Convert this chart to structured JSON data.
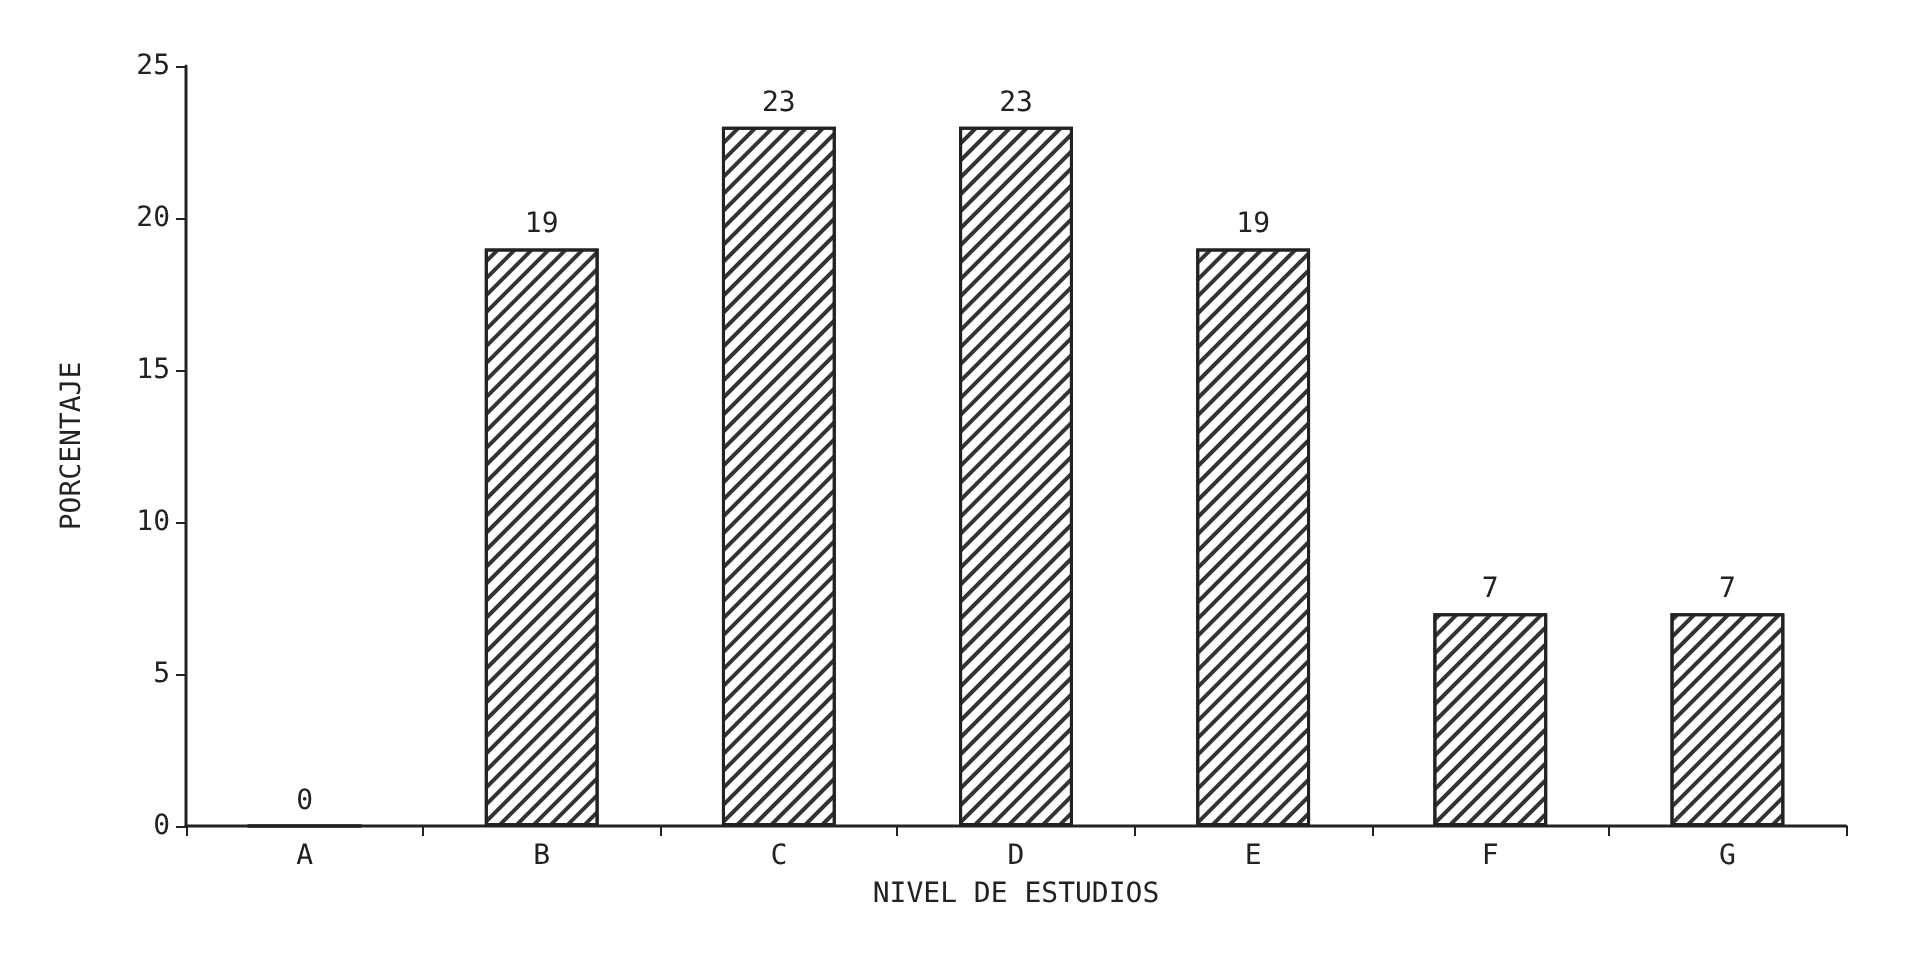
{
  "chart_data": {
    "type": "bar",
    "xlabel": "NIVEL DE ESTUDIOS",
    "ylabel": "PORCENTAJE",
    "categories": [
      "A",
      "B",
      "C",
      "D",
      "E",
      "F",
      "G"
    ],
    "values": [
      0,
      19,
      23,
      23,
      19,
      7,
      7
    ],
    "color": "#ffffff",
    "ylim": [
      0,
      25
    ],
    "yticks": [
      0,
      5,
      10,
      15,
      20,
      25
    ],
    "grid": false,
    "data_labels": true
  }
}
